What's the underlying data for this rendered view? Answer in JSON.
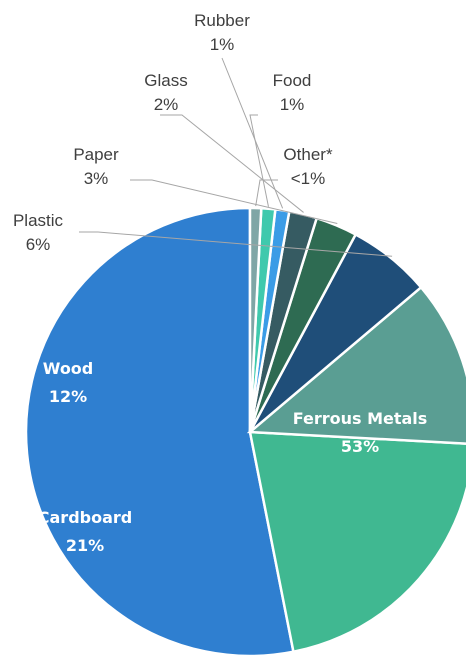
{
  "chart_data": {
    "type": "pie",
    "title": "",
    "slices": [
      {
        "label": "Ferrous Metals",
        "value_label": "53%",
        "value": 53,
        "color": "#2f7fd0",
        "label_position": "inside"
      },
      {
        "label": "Cardboard",
        "value_label": "21%",
        "value": 21,
        "color": "#40b891",
        "label_position": "inside"
      },
      {
        "label": "Wood",
        "value_label": "12%",
        "value": 12,
        "color": "#5a9e93",
        "label_position": "inside"
      },
      {
        "label": "Plastic",
        "value_label": "6%",
        "value": 6,
        "color": "#1f4e79",
        "label_position": "outside"
      },
      {
        "label": "Paper",
        "value_label": "3%",
        "value": 3,
        "color": "#2e6b52",
        "label_position": "outside"
      },
      {
        "label": "Glass",
        "value_label": "2%",
        "value": 2,
        "color": "#365b62",
        "label_position": "outside"
      },
      {
        "label": "Rubber",
        "value_label": "1%",
        "value": 1,
        "color": "#3b9ce6",
        "label_position": "outside"
      },
      {
        "label": "Food",
        "value_label": "1%",
        "value": 1,
        "color": "#3fc9ad",
        "label_position": "outside"
      },
      {
        "label": "Other*",
        "value_label": "<1%",
        "value": 0.8,
        "color": "#7fa6a6",
        "label_position": "outside"
      }
    ],
    "start_angle": "12 o'clock",
    "direction": "counter-clockwise",
    "legend": "none"
  }
}
